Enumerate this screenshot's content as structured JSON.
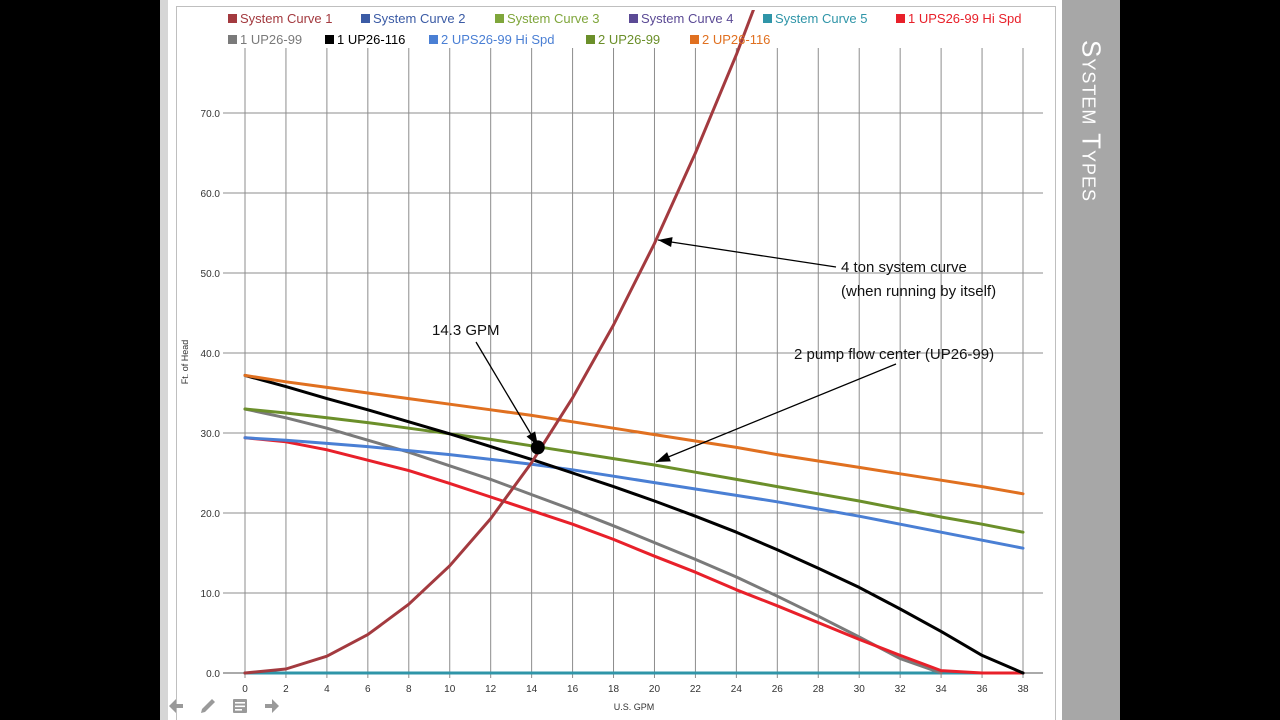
{
  "side_title": "System Types",
  "legend": {
    "row1": [
      {
        "label": "System Curve 1",
        "color": "#a33a3f"
      },
      {
        "label": "System Curve 2",
        "color": "#3b5ba5"
      },
      {
        "label": "System Curve 3",
        "color": "#7fa63b"
      },
      {
        "label": "System Curve 4",
        "color": "#5b4a95"
      },
      {
        "label": "System Curve 5",
        "color": "#2f95a8"
      },
      {
        "label": "1 UPS26-99 Hi Spd",
        "color": "#e8202a"
      }
    ],
    "row2": [
      {
        "label": "1 UP26-99",
        "color": "#7a7a7a"
      },
      {
        "label": "1 UP26-116",
        "color": "#000000"
      },
      {
        "label": "2 UPS26-99 Hi Spd",
        "color": "#4a7fd4"
      },
      {
        "label": "2 UP26-99",
        "color": "#6b8f2a"
      },
      {
        "label": "2 UP26-116",
        "color": "#e07020"
      }
    ]
  },
  "annotations": {
    "gpm_label": "14.3 GPM",
    "system_curve_line1": "4 ton system curve",
    "system_curve_line2": "(when running by itself)",
    "flow_center": "2 pump flow center (UP26-99)"
  },
  "chart_data": {
    "type": "line",
    "xlabel": "U.S. GPM",
    "ylabel": "Ft. of Head",
    "xlim": [
      0,
      38
    ],
    "ylim": [
      0,
      75
    ],
    "x_ticks": [
      "0",
      "2",
      "4",
      "6",
      "8",
      "10",
      "12",
      "14",
      "16",
      "18",
      "20",
      "22",
      "24",
      "26",
      "28",
      "30",
      "32",
      "34",
      "36",
      "38"
    ],
    "y_ticks": [
      "0.0",
      "10.0",
      "20.0",
      "30.0",
      "40.0",
      "50.0",
      "60.0",
      "70.0"
    ],
    "grid": true,
    "legend_position": "top",
    "operating_point": {
      "x": 14.3,
      "y": 28.2
    },
    "series": [
      {
        "name": "System Curve 1",
        "color": "#a33a3f",
        "x": [
          0,
          2,
          4,
          6,
          8,
          10,
          12,
          14,
          16,
          18,
          20,
          22,
          24,
          25
        ],
        "y": [
          0,
          0.5,
          2.1,
          4.8,
          8.6,
          13.4,
          19.3,
          26.3,
          34.4,
          43.5,
          53.7,
          65.0,
          77.3,
          84.0
        ]
      },
      {
        "name": "System Curve 2",
        "color": "#3b5ba5",
        "x": [
          0,
          38
        ],
        "y": [
          0,
          0
        ]
      },
      {
        "name": "System Curve 3",
        "color": "#7fa63b",
        "x": [
          0,
          38
        ],
        "y": [
          0,
          0
        ]
      },
      {
        "name": "System Curve 4",
        "color": "#5b4a95",
        "x": [
          0,
          38
        ],
        "y": [
          0,
          0
        ]
      },
      {
        "name": "System Curve 5",
        "color": "#2f95a8",
        "x": [
          0,
          38
        ],
        "y": [
          0,
          0
        ]
      },
      {
        "name": "1 UPS26-99 Hi Spd",
        "color": "#e8202a",
        "x": [
          0,
          2,
          4,
          6,
          8,
          10,
          12,
          14,
          16,
          18,
          20,
          22,
          24,
          26,
          28,
          30,
          32,
          34,
          36,
          38
        ],
        "y": [
          29.4,
          28.9,
          27.9,
          26.6,
          25.3,
          23.7,
          22.0,
          20.3,
          18.6,
          16.7,
          14.6,
          12.6,
          10.4,
          8.4,
          6.3,
          4.2,
          2.2,
          0.3,
          0,
          0
        ]
      },
      {
        "name": "1 UP26-99",
        "color": "#7a7a7a",
        "x": [
          0,
          2,
          4,
          6,
          8,
          10,
          12,
          14,
          16,
          18,
          20,
          22,
          24,
          26,
          28,
          30,
          32,
          34
        ],
        "y": [
          33.0,
          31.9,
          30.6,
          29.1,
          27.6,
          25.9,
          24.2,
          22.3,
          20.4,
          18.4,
          16.3,
          14.2,
          12.0,
          9.6,
          7.1,
          4.5,
          1.8,
          0
        ]
      },
      {
        "name": "1 UP26-116",
        "color": "#000000",
        "x": [
          0,
          2,
          4,
          6,
          8,
          10,
          12,
          14,
          16,
          18,
          20,
          22,
          24,
          26,
          28,
          30,
          32,
          34,
          36,
          38
        ],
        "y": [
          37.2,
          35.8,
          34.3,
          32.9,
          31.4,
          29.9,
          28.3,
          26.7,
          25.0,
          23.3,
          21.5,
          19.6,
          17.6,
          15.4,
          13.1,
          10.7,
          8.0,
          5.2,
          2.2,
          0
        ]
      },
      {
        "name": "2 UPS26-99 Hi Spd",
        "color": "#4a7fd4",
        "x": [
          0,
          2,
          4,
          6,
          8,
          10,
          12,
          14,
          16,
          18,
          20,
          22,
          24,
          26,
          28,
          30,
          32,
          34,
          36,
          38
        ],
        "y": [
          29.4,
          29.1,
          28.7,
          28.3,
          27.8,
          27.3,
          26.7,
          26.1,
          25.4,
          24.6,
          23.8,
          23.0,
          22.2,
          21.4,
          20.5,
          19.6,
          18.6,
          17.6,
          16.6,
          15.6
        ]
      },
      {
        "name": "2 UP26-99",
        "color": "#6b8f2a",
        "x": [
          0,
          2,
          4,
          6,
          8,
          10,
          12,
          14,
          16,
          18,
          20,
          22,
          24,
          26,
          28,
          30,
          32,
          34,
          36,
          38
        ],
        "y": [
          33.0,
          32.5,
          31.9,
          31.3,
          30.6,
          29.9,
          29.2,
          28.4,
          27.6,
          26.8,
          26.0,
          25.1,
          24.2,
          23.3,
          22.4,
          21.5,
          20.5,
          19.5,
          18.6,
          17.6
        ]
      },
      {
        "name": "2 UP26-116",
        "color": "#e07020",
        "x": [
          0,
          2,
          4,
          6,
          8,
          10,
          12,
          14,
          16,
          18,
          20,
          22,
          24,
          26,
          28,
          30,
          32,
          34,
          36,
          38
        ],
        "y": [
          37.2,
          36.4,
          35.7,
          35.0,
          34.3,
          33.6,
          32.9,
          32.2,
          31.4,
          30.6,
          29.8,
          29.0,
          28.2,
          27.3,
          26.5,
          25.7,
          24.9,
          24.1,
          23.3,
          22.4
        ]
      }
    ]
  },
  "controls": {
    "prev": "back-arrow-icon",
    "edit": "pencil-icon",
    "notes": "notes-icon",
    "next": "forward-arrow-icon"
  }
}
